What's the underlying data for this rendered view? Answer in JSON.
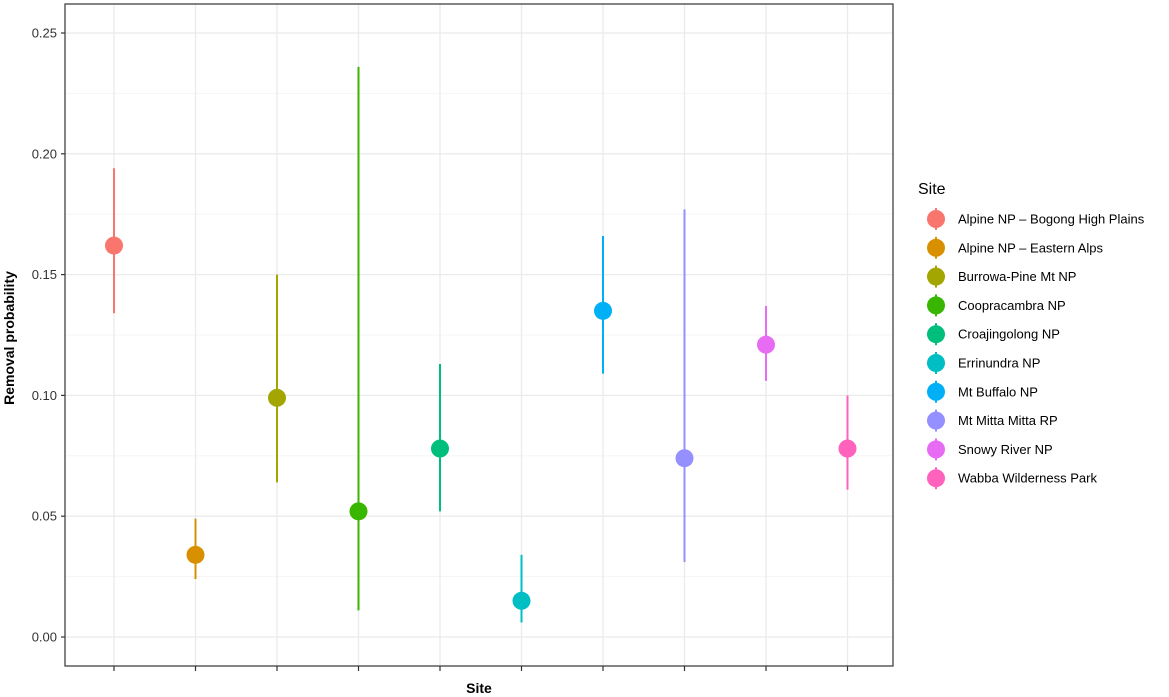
{
  "chart_data": {
    "type": "scatter",
    "subtype": "point-range",
    "xlabel": "Site",
    "ylabel": "Removal probability",
    "ylim": [
      0.0,
      0.255
    ],
    "yticks": [
      0.0,
      0.05,
      0.1,
      0.15,
      0.2,
      0.25
    ],
    "ytick_labels": [
      "0.00",
      "0.05",
      "0.10",
      "0.15",
      "0.20",
      "0.25"
    ],
    "x_tick_labels_shown": false,
    "grid": true,
    "legend": {
      "title": "Site",
      "placement": "right"
    },
    "points": [
      {
        "site": "Alpine NP – Bogong High Plains",
        "estimate": 0.162,
        "lower": 0.134,
        "upper": 0.194,
        "color": "#F8766D"
      },
      {
        "site": "Alpine NP – Eastern Alps",
        "estimate": 0.034,
        "lower": 0.024,
        "upper": 0.049,
        "color": "#D89000"
      },
      {
        "site": "Burrowa-Pine Mt NP",
        "estimate": 0.099,
        "lower": 0.064,
        "upper": 0.15,
        "color": "#A3A500"
      },
      {
        "site": "Coopracambra NP",
        "estimate": 0.052,
        "lower": 0.011,
        "upper": 0.236,
        "color": "#39B600"
      },
      {
        "site": "Croajingolong NP",
        "estimate": 0.078,
        "lower": 0.052,
        "upper": 0.113,
        "color": "#00BF7D"
      },
      {
        "site": "Errinundra NP",
        "estimate": 0.015,
        "lower": 0.006,
        "upper": 0.034,
        "color": "#00BFC4"
      },
      {
        "site": "Mt Buffalo NP",
        "estimate": 0.135,
        "lower": 0.109,
        "upper": 0.166,
        "color": "#00B0F6"
      },
      {
        "site": "Mt Mitta Mitta RP",
        "estimate": 0.074,
        "lower": 0.031,
        "upper": 0.177,
        "color": "#9590FF"
      },
      {
        "site": "Snowy River NP",
        "estimate": 0.121,
        "lower": 0.106,
        "upper": 0.137,
        "color": "#E76BF3"
      },
      {
        "site": "Wabba Wilderness Park",
        "estimate": 0.078,
        "lower": 0.061,
        "upper": 0.1,
        "color": "#FF62BC"
      }
    ]
  },
  "style": {
    "panel_border": "#333333",
    "grid_major": "#EBEBEB",
    "grid_minor": "#F5F5F5",
    "axis_tick": "#333333"
  }
}
